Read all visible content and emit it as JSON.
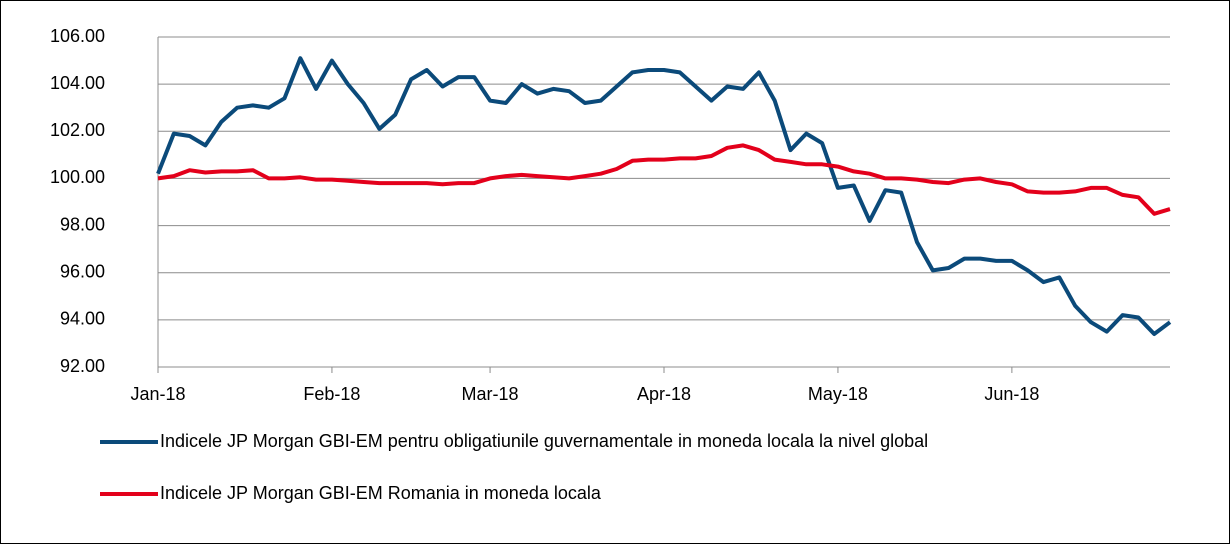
{
  "chart_data": {
    "type": "line",
    "categories": [
      "Jan-18",
      null,
      null,
      null,
      null,
      null,
      null,
      null,
      null,
      null,
      null,
      "Feb-18",
      null,
      null,
      null,
      null,
      null,
      null,
      null,
      null,
      null,
      "Mar-18",
      null,
      null,
      null,
      null,
      null,
      null,
      null,
      null,
      null,
      null,
      "Apr-18",
      null,
      null,
      null,
      null,
      null,
      null,
      null,
      null,
      null,
      null,
      "May-18",
      null,
      null,
      null,
      null,
      null,
      null,
      null,
      null,
      null,
      null,
      "Jun-18",
      null,
      null,
      null,
      null,
      null,
      null,
      null,
      null,
      null,
      null
    ],
    "series": [
      {
        "name": "Indicele JP Morgan GBI-EM pentru obligatiunile guvernamentale in moneda locala la nivel global",
        "color": "#0b4a7a",
        "values": [
          100.2,
          101.9,
          101.8,
          101.4,
          102.4,
          103.0,
          103.1,
          103.0,
          103.4,
          105.1,
          103.8,
          105.0,
          104.0,
          103.2,
          102.1,
          102.7,
          104.2,
          104.6,
          103.9,
          104.3,
          104.3,
          103.3,
          103.2,
          104.0,
          103.6,
          103.8,
          103.7,
          103.2,
          103.3,
          103.9,
          104.5,
          104.6,
          104.6,
          104.5,
          103.9,
          103.3,
          103.9,
          103.8,
          104.5,
          103.3,
          101.2,
          101.9,
          101.5,
          99.6,
          99.7,
          98.2,
          99.5,
          99.4,
          97.3,
          96.1,
          96.2,
          96.6,
          96.6,
          96.5,
          96.5,
          96.1,
          95.6,
          95.8,
          94.6,
          93.9,
          93.5,
          94.2,
          94.1,
          93.4,
          93.9
        ]
      },
      {
        "name": "Indicele JP Morgan GBI-EM Romania in moneda locala",
        "color": "#e3001b",
        "values": [
          100.0,
          100.1,
          100.35,
          100.25,
          100.3,
          100.3,
          100.35,
          100.0,
          100.0,
          100.05,
          99.95,
          99.95,
          99.9,
          99.85,
          99.8,
          99.8,
          99.8,
          99.8,
          99.75,
          99.8,
          99.8,
          100.0,
          100.1,
          100.15,
          100.1,
          100.05,
          100.0,
          100.1,
          100.2,
          100.4,
          100.75,
          100.8,
          100.8,
          100.85,
          100.85,
          100.95,
          101.3,
          101.4,
          101.2,
          100.8,
          100.7,
          100.6,
          100.6,
          100.5,
          100.3,
          100.2,
          100.0,
          100.0,
          99.95,
          99.85,
          99.8,
          99.95,
          100.0,
          99.85,
          99.75,
          99.45,
          99.4,
          99.4,
          99.45,
          99.6,
          99.6,
          99.3,
          99.2,
          98.5,
          98.7
        ]
      }
    ],
    "ylim": [
      92,
      106
    ],
    "yticks": [
      {
        "value": 92,
        "label": "92.00"
      },
      {
        "value": 94,
        "label": "94.00"
      },
      {
        "value": 96,
        "label": "96.00"
      },
      {
        "value": 98,
        "label": "98.00"
      },
      {
        "value": 100,
        "label": "100.00"
      },
      {
        "value": 102,
        "label": "102.00"
      },
      {
        "value": 104,
        "label": "104.00"
      },
      {
        "value": 106,
        "label": "106.00"
      }
    ],
    "grid": true,
    "legend": "bottom"
  }
}
